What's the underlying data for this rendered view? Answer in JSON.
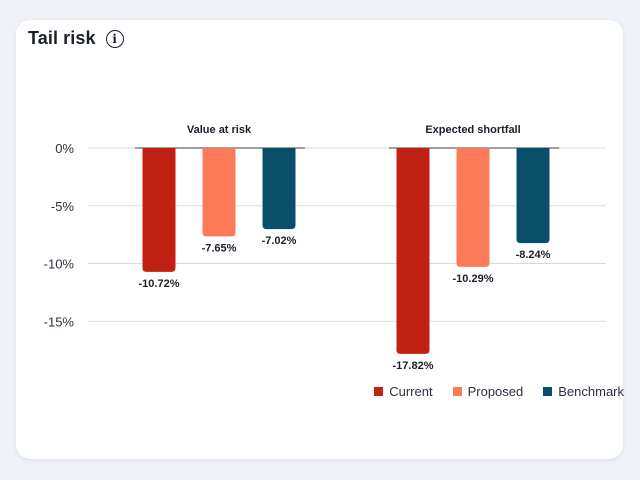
{
  "title": "Tail risk",
  "info_icon": "info-icon",
  "chart_data": {
    "type": "bar",
    "groups": [
      "Value at risk",
      "Expected shortfall"
    ],
    "series": [
      {
        "name": "Current",
        "color": "#c02112",
        "values": [
          -10.72,
          -17.82
        ],
        "labels": [
          "-10.72%",
          "-17.82%"
        ]
      },
      {
        "name": "Proposed",
        "color": "#fb7a57",
        "values": [
          -7.65,
          -10.29
        ],
        "labels": [
          "-7.65%",
          "-10.29%"
        ]
      },
      {
        "name": "Benchmark",
        "color": "#0a4f6a",
        "values": [
          -7.02,
          -8.24
        ],
        "labels": [
          "-7.02%",
          "-8.24%"
        ]
      }
    ],
    "yticks": [
      0,
      -5,
      -10,
      -15
    ],
    "ytick_labels": [
      "0%",
      "-5%",
      "-10%",
      "-15%"
    ],
    "ylim": [
      -18,
      0
    ],
    "grid": true,
    "legend_position": "bottom-right"
  }
}
